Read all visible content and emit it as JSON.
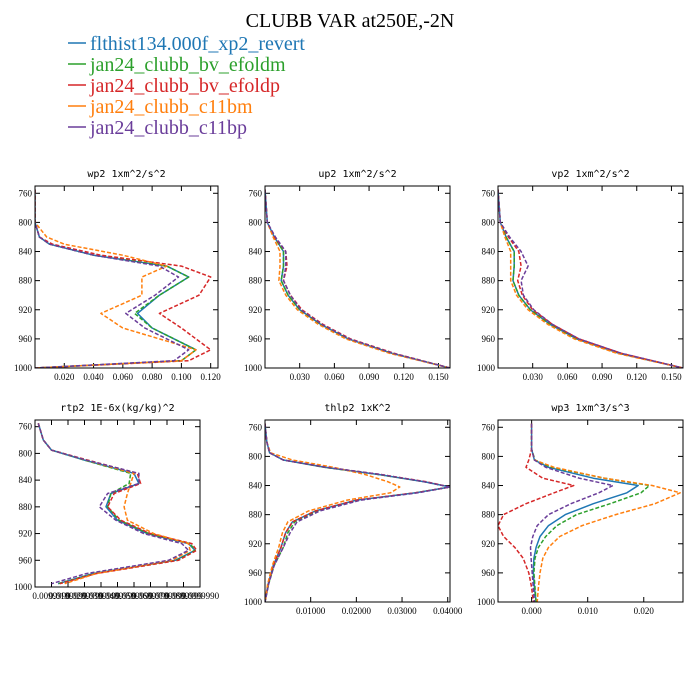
{
  "title": "CLUBB VAR at250E,-2N",
  "legend": [
    {
      "name": "flthist134.000f_xp2_revert",
      "color": "#1f77b4",
      "dash": false
    },
    {
      "name": "jan24_clubb_bv_efoldm",
      "color": "#2ca02c",
      "dash": true
    },
    {
      "name": "jan24_clubb_bv_efoldp",
      "color": "#d62728",
      "dash": true
    },
    {
      "name": "jan24_clubb_c11bm",
      "color": "#ff7f0e",
      "dash": true
    },
    {
      "name": "jan24_clubb_c11bp",
      "color": "#6a3d9a",
      "dash": true
    }
  ],
  "chart_data": [
    {
      "type": "line",
      "title": "wp2  1xm^2/s^2",
      "xlim": [
        0,
        0.125
      ],
      "ylim": [
        1000,
        750
      ],
      "xticks": [
        0.02,
        0.04,
        0.06,
        0.08,
        0.1,
        0.12
      ],
      "xtick_labels": [
        "0.020",
        "0.040",
        "0.060",
        "0.080",
        "0.100",
        "0.120"
      ],
      "yticks": [
        760,
        800,
        840,
        880,
        920,
        960,
        1000
      ],
      "ytick_labels": [
        "760",
        "800",
        "840",
        "880",
        "920",
        "960",
        "1000"
      ],
      "y": [
        755,
        800,
        820,
        830,
        845,
        860,
        875,
        900,
        925,
        945,
        960,
        975,
        990,
        1000
      ],
      "series": [
        {
          "name": "flthist134.000f_xp2_revert",
          "values": [
            0.0,
            0.0,
            0.003,
            0.01,
            0.04,
            0.09,
            0.105,
            0.085,
            0.07,
            0.08,
            0.095,
            0.11,
            0.1,
            0.0
          ]
        },
        {
          "name": "jan24_clubb_bv_efoldm",
          "values": [
            0.0,
            0.0,
            0.003,
            0.01,
            0.04,
            0.09,
            0.105,
            0.085,
            0.068,
            0.08,
            0.095,
            0.11,
            0.1,
            0.0
          ]
        },
        {
          "name": "jan24_clubb_bv_efoldp",
          "values": [
            0.0,
            0.0,
            0.003,
            0.012,
            0.045,
            0.1,
            0.12,
            0.112,
            0.085,
            0.1,
            0.11,
            0.12,
            0.105,
            0.0
          ]
        },
        {
          "name": "jan24_clubb_c11bm",
          "values": [
            0.0,
            0.0,
            0.008,
            0.02,
            0.06,
            0.09,
            0.073,
            0.073,
            0.045,
            0.06,
            0.085,
            0.11,
            0.1,
            0.0
          ]
        },
        {
          "name": "jan24_clubb_c11bp",
          "values": [
            0.0,
            0.0,
            0.003,
            0.01,
            0.04,
            0.085,
            0.098,
            0.082,
            0.062,
            0.075,
            0.09,
            0.105,
            0.095,
            0.0
          ]
        }
      ]
    },
    {
      "type": "line",
      "title": "up2  1xm^2/s^2",
      "xlim": [
        0,
        0.16
      ],
      "ylim": [
        1000,
        750
      ],
      "xticks": [
        0.03,
        0.06,
        0.09,
        0.12,
        0.15
      ],
      "xtick_labels": [
        "0.030",
        "0.060",
        "0.090",
        "0.120",
        "0.150"
      ],
      "yticks": [
        760,
        800,
        840,
        880,
        920,
        960,
        1000
      ],
      "ytick_labels": [
        "760",
        "800",
        "840",
        "880",
        "920",
        "960",
        "1000"
      ],
      "y": [
        755,
        800,
        820,
        840,
        860,
        880,
        900,
        920,
        940,
        960,
        980,
        1000
      ],
      "series": [
        {
          "name": "flthist134.000f_xp2_revert",
          "values": [
            0.0,
            0.002,
            0.008,
            0.016,
            0.016,
            0.014,
            0.02,
            0.03,
            0.048,
            0.072,
            0.11,
            0.16
          ]
        },
        {
          "name": "jan24_clubb_bv_efoldm",
          "values": [
            0.0,
            0.002,
            0.008,
            0.016,
            0.016,
            0.014,
            0.02,
            0.03,
            0.048,
            0.072,
            0.11,
            0.16
          ]
        },
        {
          "name": "jan24_clubb_bv_efoldp",
          "values": [
            0.0,
            0.002,
            0.008,
            0.018,
            0.019,
            0.016,
            0.022,
            0.032,
            0.05,
            0.074,
            0.112,
            0.16
          ]
        },
        {
          "name": "jan24_clubb_c11bm",
          "values": [
            0.0,
            0.002,
            0.007,
            0.013,
            0.013,
            0.012,
            0.018,
            0.028,
            0.046,
            0.07,
            0.108,
            0.16
          ]
        },
        {
          "name": "jan24_clubb_c11bp",
          "values": [
            0.0,
            0.002,
            0.009,
            0.018,
            0.018,
            0.016,
            0.022,
            0.031,
            0.049,
            0.073,
            0.111,
            0.16
          ]
        }
      ]
    },
    {
      "type": "line",
      "title": "vp2  1xm^2/s^2",
      "xlim": [
        0,
        0.16
      ],
      "ylim": [
        1000,
        750
      ],
      "xticks": [
        0.03,
        0.06,
        0.09,
        0.12,
        0.15
      ],
      "xtick_labels": [
        "0.030",
        "0.060",
        "0.090",
        "0.120",
        "0.150"
      ],
      "yticks": [
        760,
        800,
        840,
        880,
        920,
        960,
        1000
      ],
      "ytick_labels": [
        "760",
        "800",
        "840",
        "880",
        "920",
        "960",
        "1000"
      ],
      "y": [
        755,
        800,
        820,
        840,
        860,
        880,
        900,
        920,
        940,
        960,
        980,
        1000
      ],
      "series": [
        {
          "name": "flthist134.000f_xp2_revert",
          "values": [
            0.0,
            0.002,
            0.007,
            0.014,
            0.014,
            0.013,
            0.018,
            0.028,
            0.045,
            0.068,
            0.105,
            0.16
          ]
        },
        {
          "name": "jan24_clubb_bv_efoldm",
          "values": [
            0.0,
            0.002,
            0.007,
            0.014,
            0.014,
            0.013,
            0.018,
            0.028,
            0.045,
            0.068,
            0.105,
            0.16
          ]
        },
        {
          "name": "jan24_clubb_bv_efoldp",
          "values": [
            0.0,
            0.002,
            0.009,
            0.018,
            0.02,
            0.017,
            0.021,
            0.03,
            0.047,
            0.07,
            0.107,
            0.16
          ]
        },
        {
          "name": "jan24_clubb_c11bm",
          "values": [
            0.0,
            0.002,
            0.006,
            0.011,
            0.011,
            0.011,
            0.016,
            0.026,
            0.043,
            0.066,
            0.103,
            0.16
          ]
        },
        {
          "name": "jan24_clubb_c11bp",
          "values": [
            0.0,
            0.002,
            0.01,
            0.02,
            0.026,
            0.02,
            0.022,
            0.031,
            0.047,
            0.07,
            0.107,
            0.16
          ]
        }
      ]
    },
    {
      "type": "line",
      "title": "rtp2  1E-6x(kg/kg)^2",
      "xlim": [
        0,
        1e-05
      ],
      "ylim": [
        1000,
        750
      ],
      "xticks": [
        1e-06,
        2e-06,
        3e-06,
        4e-06,
        5e-06,
        6e-06,
        7e-06,
        8e-06,
        9e-06,
        1e-05
      ],
      "xtick_labels": [
        "0.0099999",
        "0.0199999",
        "0.0299999",
        "0.0399999",
        "0.0499999",
        "0.0599999",
        "0.0699999",
        "0.0799999",
        "0.0899999",
        "0.0999990"
      ],
      "yticks": [
        760,
        800,
        840,
        880,
        920,
        960,
        1000
      ],
      "ytick_labels": [
        "760",
        "800",
        "840",
        "880",
        "920",
        "960",
        "1000"
      ],
      "y": [
        755,
        780,
        795,
        810,
        830,
        845,
        860,
        880,
        900,
        920,
        935,
        945,
        960,
        980,
        995
      ],
      "series": [
        {
          "name": "flthist134.000f_xp2_revert",
          "values": [
            2e-07,
            5e-07,
            1e-06,
            3e-06,
            6e-06,
            6.3e-06,
            4.6e-06,
            4.3e-06,
            5e-06,
            6.8e-06,
            9.3e-06,
            9.7e-06,
            8.5e-06,
            3.5e-06,
            1.4e-06
          ]
        },
        {
          "name": "jan24_clubb_bv_efoldm",
          "values": [
            2e-07,
            5e-07,
            1e-06,
            3e-06,
            5.8e-06,
            5.7e-06,
            4.6e-06,
            4.4e-06,
            5.1e-06,
            6.9e-06,
            9.4e-06,
            9.7e-06,
            8.6e-06,
            3.6e-06,
            1.4e-06
          ]
        },
        {
          "name": "jan24_clubb_bv_efoldp",
          "values": [
            2e-07,
            5e-07,
            1e-06,
            3.2e-06,
            6.2e-06,
            6.4e-06,
            4.8e-06,
            4.4e-06,
            5.2e-06,
            7e-06,
            9.5e-06,
            9.8e-06,
            8.7e-06,
            3.7e-06,
            1.5e-06
          ]
        },
        {
          "name": "jan24_clubb_c11bm",
          "values": [
            2e-07,
            5e-07,
            1e-06,
            3.1e-06,
            6e-06,
            5.8e-06,
            5.6e-06,
            5.4e-06,
            5.6e-06,
            7.2e-06,
            9.3e-06,
            9.4e-06,
            8.3e-06,
            3.7e-06,
            1.8e-06
          ]
        },
        {
          "name": "jan24_clubb_c11bp",
          "values": [
            2e-07,
            5e-07,
            1e-06,
            3.1e-06,
            6.3e-06,
            6.3e-06,
            4.4e-06,
            3.9e-06,
            4.9e-06,
            6.6e-06,
            8.9e-06,
            9.3e-06,
            8.1e-06,
            3.1e-06,
            1e-06
          ]
        }
      ]
    },
    {
      "type": "line",
      "title": "thlp2  1xK^2",
      "xlim": [
        0,
        0.0405
      ],
      "ylim": [
        1000,
        750
      ],
      "xticks": [
        0.01,
        0.02,
        0.03,
        0.04
      ],
      "xtick_labels": [
        "0.01000",
        "0.02000",
        "0.03000",
        "0.04000"
      ],
      "yticks": [
        760,
        800,
        840,
        880,
        920,
        960,
        1000
      ],
      "ytick_labels": [
        "760",
        "800",
        "840",
        "880",
        "920",
        "960",
        "1000"
      ],
      "y": [
        755,
        780,
        795,
        805,
        815,
        825,
        835,
        842,
        850,
        860,
        875,
        890,
        905,
        925,
        950,
        975,
        1000
      ],
      "series": [
        {
          "name": "flthist134.000f_xp2_revert",
          "values": [
            0.0,
            0.0004,
            0.001,
            0.004,
            0.013,
            0.025,
            0.035,
            0.0405,
            0.033,
            0.02,
            0.011,
            0.006,
            0.0045,
            0.0035,
            0.0018,
            0.0007,
            0.0
          ]
        },
        {
          "name": "jan24_clubb_bv_efoldm",
          "values": [
            0.0,
            0.0004,
            0.001,
            0.004,
            0.013,
            0.025,
            0.035,
            0.0405,
            0.033,
            0.0205,
            0.0115,
            0.0065,
            0.005,
            0.004,
            0.002,
            0.0008,
            0.0
          ]
        },
        {
          "name": "jan24_clubb_bv_efoldp",
          "values": [
            0.0,
            0.0004,
            0.001,
            0.004,
            0.0135,
            0.0255,
            0.0355,
            0.0405,
            0.033,
            0.02,
            0.011,
            0.006,
            0.0045,
            0.0035,
            0.0018,
            0.0007,
            0.0
          ]
        },
        {
          "name": "jan24_clubb_c11bm",
          "values": [
            0.0,
            0.0004,
            0.0012,
            0.006,
            0.015,
            0.022,
            0.027,
            0.0295,
            0.0275,
            0.018,
            0.0095,
            0.005,
            0.0038,
            0.003,
            0.0016,
            0.0006,
            0.0
          ]
        },
        {
          "name": "jan24_clubb_c11bp",
          "values": [
            0.0,
            0.0004,
            0.001,
            0.004,
            0.0135,
            0.0255,
            0.035,
            0.0405,
            0.0335,
            0.021,
            0.012,
            0.007,
            0.0055,
            0.004,
            0.002,
            0.0008,
            0.0
          ]
        }
      ]
    },
    {
      "type": "line",
      "title": "wp3  1xm^3/s^3",
      "xlim": [
        -0.006,
        0.027
      ],
      "ylim": [
        1000,
        750
      ],
      "xticks": [
        0.0,
        0.01,
        0.02
      ],
      "xtick_labels": [
        "0.000",
        "0.010",
        "0.020"
      ],
      "yticks": [
        760,
        800,
        840,
        880,
        920,
        960,
        1000
      ],
      "ytick_labels": [
        "760",
        "800",
        "840",
        "880",
        "920",
        "960",
        "1000"
      ],
      "y": [
        755,
        790,
        805,
        815,
        830,
        840,
        850,
        865,
        880,
        895,
        910,
        925,
        940,
        960,
        980,
        1000
      ],
      "series": [
        {
          "name": "flthist134.000f_xp2_revert",
          "values": [
            0.0,
            0.0,
            0.0005,
            0.003,
            0.011,
            0.019,
            0.017,
            0.011,
            0.006,
            0.003,
            0.0015,
            0.0008,
            0.0004,
            0.0003,
            0.0005,
            0.0008
          ]
        },
        {
          "name": "jan24_clubb_bv_efoldm",
          "values": [
            0.0,
            0.0,
            0.0006,
            0.0035,
            0.013,
            0.021,
            0.0195,
            0.014,
            0.008,
            0.0045,
            0.0025,
            0.0012,
            0.0006,
            0.0004,
            0.0006,
            0.0008
          ]
        },
        {
          "name": "jan24_clubb_bv_efoldp",
          "values": [
            0.0,
            0.0,
            -0.0005,
            -0.001,
            0.002,
            0.0075,
            0.004,
            -0.001,
            -0.005,
            -0.006,
            -0.005,
            -0.003,
            -0.0015,
            -0.0005,
            0.0,
            0.0003
          ]
        },
        {
          "name": "jan24_clubb_c11bm",
          "values": [
            0.0,
            0.0,
            0.0005,
            0.004,
            0.013,
            0.0215,
            0.0265,
            0.022,
            0.015,
            0.009,
            0.005,
            0.003,
            0.002,
            0.0015,
            0.0012,
            0.001
          ]
        },
        {
          "name": "jan24_clubb_c11bp",
          "values": [
            0.0,
            0.0,
            0.0005,
            0.0025,
            0.0085,
            0.0145,
            0.012,
            0.007,
            0.003,
            0.001,
            0.0002,
            -0.0002,
            -0.0001,
            0.0001,
            0.0003,
            0.0005
          ]
        }
      ]
    }
  ]
}
